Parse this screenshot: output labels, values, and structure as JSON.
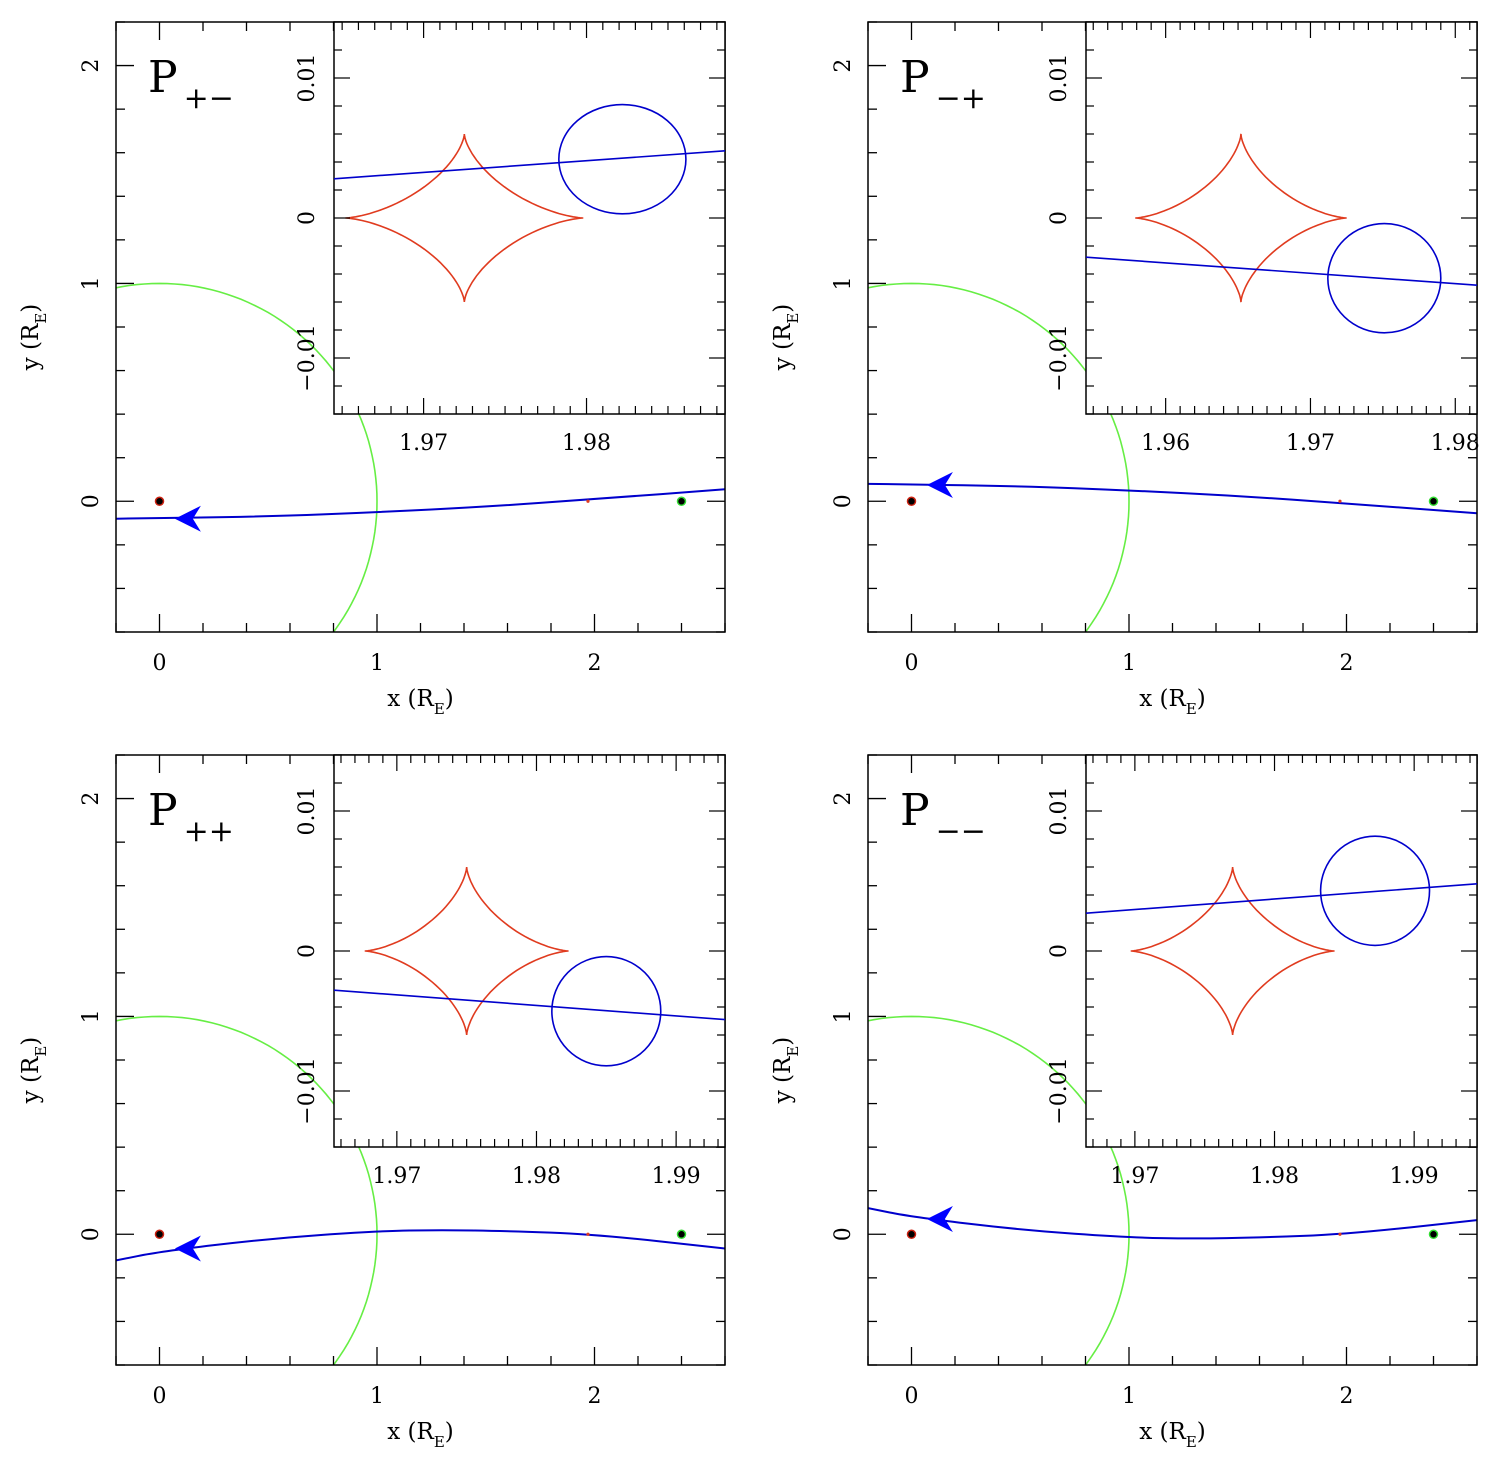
{
  "figure": {
    "panels_layout": "2x2"
  },
  "chart_data": [
    {
      "type": "line",
      "panel_label": "P",
      "panel_label_sub": "+−",
      "xlabel_main": "x (R",
      "xlabel_sub": "E",
      "xlabel_end": ")",
      "ylabel_main": "y (R",
      "ylabel_sub": "E",
      "ylabel_end": ")",
      "xlim": [
        -0.2,
        2.6
      ],
      "ylim": [
        -0.6,
        2.2
      ],
      "xticks": [
        0,
        1,
        2
      ],
      "yticks": [
        0,
        1,
        2
      ],
      "einstein_ring_radius": 1.0,
      "primary_lens": {
        "x": 0.0,
        "y": 0.0
      },
      "planet": {
        "x": 2.4,
        "y": 0.0
      },
      "caustic_center": {
        "x": 1.97,
        "y": 0.0
      },
      "trajectory": {
        "x": [
          -0.2,
          0.5,
          1.0,
          1.5,
          2.0,
          2.6
        ],
        "y": [
          -0.08,
          -0.07,
          -0.05,
          -0.025,
          0.01,
          0.055
        ]
      },
      "arrow_at": {
        "x": 0.08,
        "y": -0.08
      },
      "inset": {
        "xlim": [
          1.9645,
          1.9885
        ],
        "ylim": [
          -0.014,
          0.014
        ],
        "xticks": [
          "1.97",
          "1.98"
        ],
        "yticks": [
          "0.01",
          "0",
          "−0.01"
        ],
        "caustic": {
          "cx": 1.9725,
          "cy": 0.0,
          "half_width": 0.0073,
          "half_height": 0.006
        },
        "source": {
          "cx": 1.9822,
          "cy": 0.0042,
          "r": 0.0039
        },
        "trajectory_line": {
          "x": [
            1.9645,
            1.9885
          ],
          "y": [
            0.0028,
            0.0048
          ]
        }
      }
    },
    {
      "type": "line",
      "panel_label": "P",
      "panel_label_sub": "−+",
      "xlabel_main": "x (R",
      "xlabel_sub": "E",
      "xlabel_end": ")",
      "ylabel_main": "y (R",
      "ylabel_sub": "E",
      "ylabel_end": ")",
      "xlim": [
        -0.2,
        2.6
      ],
      "ylim": [
        -0.6,
        2.2
      ],
      "xticks": [
        0,
        1,
        2
      ],
      "yticks": [
        0,
        1,
        2
      ],
      "einstein_ring_radius": 1.0,
      "primary_lens": {
        "x": 0.0,
        "y": 0.0
      },
      "planet": {
        "x": 2.4,
        "y": 0.0
      },
      "caustic_center": {
        "x": 1.97,
        "y": 0.0
      },
      "trajectory": {
        "x": [
          -0.2,
          0.5,
          1.0,
          1.5,
          2.0,
          2.6
        ],
        "y": [
          0.08,
          0.07,
          0.05,
          0.025,
          -0.01,
          -0.055
        ]
      },
      "arrow_at": {
        "x": 0.08,
        "y": 0.075
      },
      "inset": {
        "xlim": [
          1.9545,
          1.9815
        ],
        "ylim": [
          -0.014,
          0.014
        ],
        "xticks": [
          "1.96",
          "1.97",
          "1.98"
        ],
        "yticks": [
          "0.01",
          "0",
          "−0.01"
        ],
        "caustic": {
          "cx": 1.9652,
          "cy": 0.0,
          "half_width": 0.0073,
          "half_height": 0.006
        },
        "source": {
          "cx": 1.9751,
          "cy": -0.0043,
          "r": 0.0039
        },
        "trajectory_line": {
          "x": [
            1.9545,
            1.9815
          ],
          "y": [
            -0.0028,
            -0.0048
          ]
        }
      }
    },
    {
      "type": "line",
      "panel_label": "P",
      "panel_label_sub": "++",
      "xlabel_main": "x (R",
      "xlabel_sub": "E",
      "xlabel_end": ")",
      "ylabel_main": "y (R",
      "ylabel_sub": "E",
      "ylabel_end": ")",
      "xlim": [
        -0.2,
        2.6
      ],
      "ylim": [
        -0.6,
        2.2
      ],
      "xticks": [
        0,
        1,
        2
      ],
      "yticks": [
        0,
        1,
        2
      ],
      "einstein_ring_radius": 1.0,
      "primary_lens": {
        "x": 0.0,
        "y": 0.0
      },
      "planet": {
        "x": 2.4,
        "y": 0.0
      },
      "caustic_center": {
        "x": 1.97,
        "y": 0.0
      },
      "trajectory": {
        "x": [
          -0.2,
          0.0,
          0.5,
          1.0,
          1.3,
          1.6,
          2.0,
          2.6
        ],
        "y": [
          -0.12,
          -0.08,
          -0.02,
          0.015,
          0.02,
          0.015,
          0.0,
          -0.065
        ]
      },
      "arrow_at": {
        "x": 0.08,
        "y": -0.065
      },
      "inset": {
        "xlim": [
          1.9655,
          1.9935
        ],
        "ylim": [
          -0.014,
          0.014
        ],
        "xticks": [
          "1.97",
          "1.98",
          "1.99"
        ],
        "yticks": [
          "0.01",
          "0",
          "−0.01"
        ],
        "caustic": {
          "cx": 1.975,
          "cy": 0.0,
          "half_width": 0.0073,
          "half_height": 0.006
        },
        "source": {
          "cx": 1.985,
          "cy": -0.0043,
          "r": 0.0039
        },
        "trajectory_line": {
          "x": [
            1.9655,
            1.9935
          ],
          "y": [
            -0.0028,
            -0.0049
          ]
        }
      }
    },
    {
      "type": "line",
      "panel_label": "P",
      "panel_label_sub": "−−",
      "xlabel_main": "x (R",
      "xlabel_sub": "E",
      "xlabel_end": ")",
      "ylabel_main": "y (R",
      "ylabel_sub": "E",
      "ylabel_end": ")",
      "xlim": [
        -0.2,
        2.6
      ],
      "ylim": [
        -0.6,
        2.2
      ],
      "xticks": [
        0,
        1,
        2
      ],
      "yticks": [
        0,
        1,
        2
      ],
      "einstein_ring_radius": 1.0,
      "primary_lens": {
        "x": 0.0,
        "y": 0.0
      },
      "planet": {
        "x": 2.4,
        "y": 0.0
      },
      "caustic_center": {
        "x": 1.97,
        "y": 0.0
      },
      "trajectory": {
        "x": [
          -0.2,
          0.0,
          0.5,
          1.0,
          1.3,
          1.6,
          2.0,
          2.6
        ],
        "y": [
          0.12,
          0.08,
          0.02,
          -0.015,
          -0.02,
          -0.015,
          0.0,
          0.065
        ]
      },
      "arrow_at": {
        "x": 0.08,
        "y": 0.07
      },
      "inset": {
        "xlim": [
          1.9665,
          1.9945
        ],
        "ylim": [
          -0.014,
          0.014
        ],
        "xticks": [
          "1.97",
          "1.98",
          "1.99"
        ],
        "yticks": [
          "0.01",
          "0",
          "−0.01"
        ],
        "caustic": {
          "cx": 1.977,
          "cy": 0.0,
          "half_width": 0.0073,
          "half_height": 0.006
        },
        "source": {
          "cx": 1.9872,
          "cy": 0.0043,
          "r": 0.0039
        },
        "trajectory_line": {
          "x": [
            1.9665,
            1.9945
          ],
          "y": [
            0.0027,
            0.0048
          ]
        }
      }
    }
  ],
  "colors": {
    "einstein_ring": "#66ee44",
    "trajectory": "#0000cc",
    "arrow": "#0000ff",
    "caustic": "#e03b1f",
    "source": "#0000cc",
    "lens_dot": "#000000",
    "lens_fill_primary": "#cc2211",
    "lens_fill_planet": "#33dd33"
  }
}
